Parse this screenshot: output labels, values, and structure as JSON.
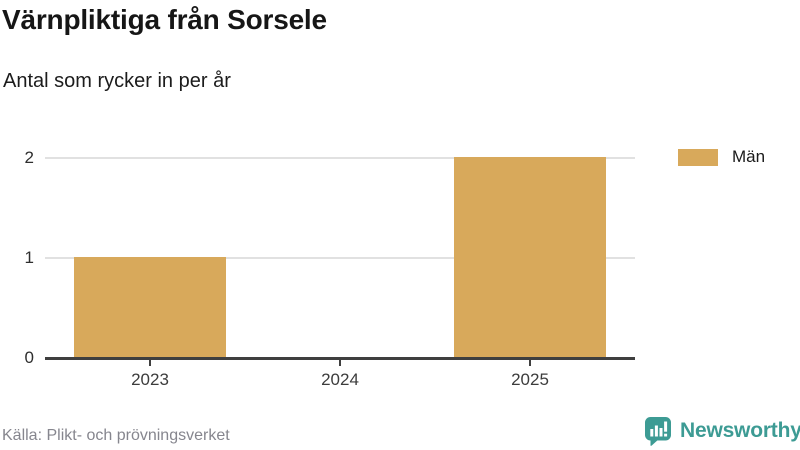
{
  "header": {
    "title": "Värnpliktiga från Sorsele",
    "subtitle": "Antal som rycker in per år"
  },
  "chart_data": {
    "type": "bar",
    "title": "Värnpliktiga från Sorsele",
    "subtitle": "Antal som rycker in per år",
    "categories": [
      "2023",
      "2024",
      "2025"
    ],
    "series": [
      {
        "name": "Män",
        "color": "#d8a95b",
        "values": [
          1,
          0,
          2
        ]
      }
    ],
    "ylim": [
      0,
      2
    ],
    "yticks": [
      0,
      1,
      2
    ],
    "grid": true,
    "legend_position": "top-right"
  },
  "footer": {
    "source": "Källa: Plikt- och prövningsverket",
    "brand": "Newsworthy"
  },
  "colors": {
    "bar": "#d8a95b",
    "axis": "#3f3f3f",
    "grid": "#e1e1e1",
    "teal": "#3d9b94"
  }
}
